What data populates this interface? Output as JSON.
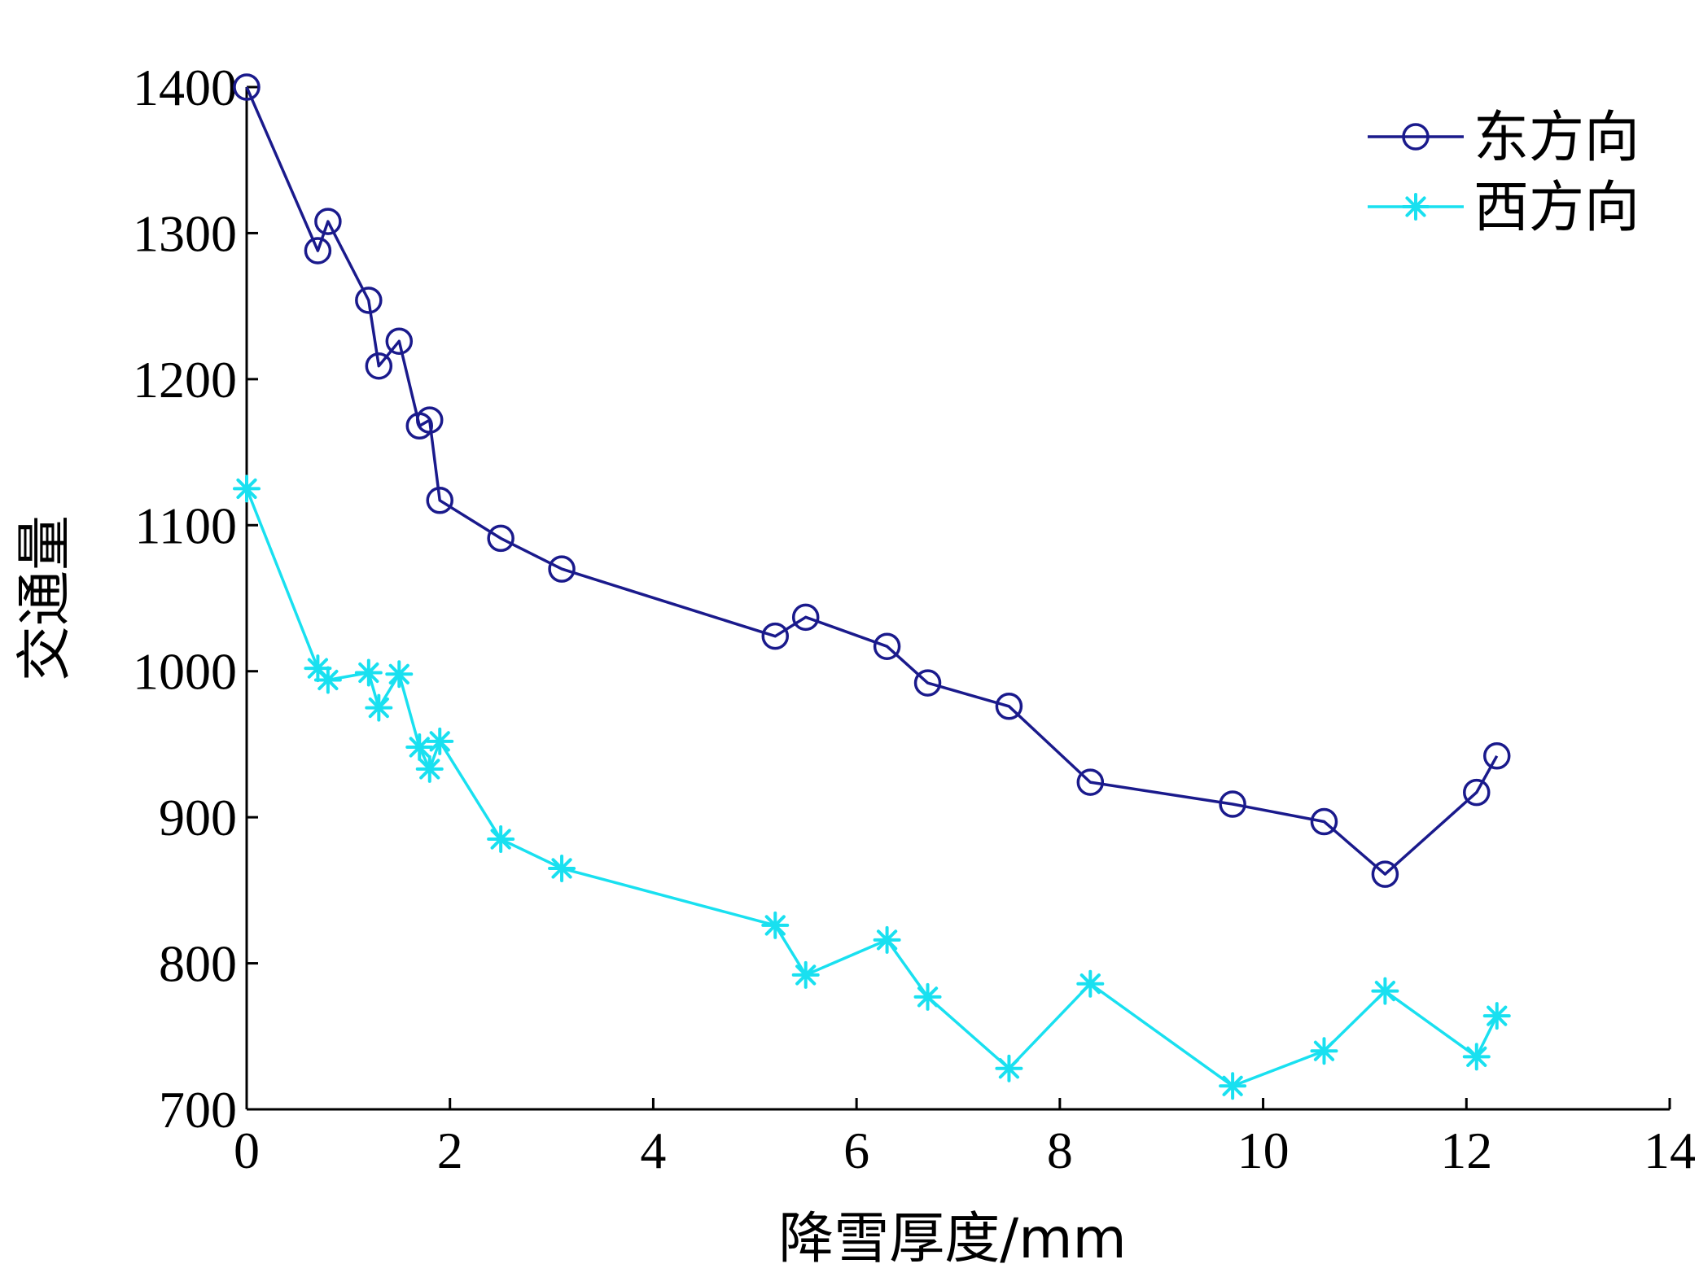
{
  "chart_data": {
    "type": "line",
    "xlabel": "降雪厚度/mm",
    "ylabel": "交通量",
    "xlim": [
      0,
      14
    ],
    "ylim": [
      700,
      1400
    ],
    "xticks": [
      0,
      2,
      4,
      6,
      8,
      10,
      12,
      14
    ],
    "yticks": [
      700,
      800,
      900,
      1000,
      1100,
      1200,
      1300,
      1400
    ],
    "grid": false,
    "legend_position": "top-right",
    "series": [
      {
        "name": "东方向",
        "color": "#1a1a8c",
        "marker": "circle",
        "x": [
          0,
          0.7,
          0.8,
          1.2,
          1.3,
          1.5,
          1.7,
          1.8,
          1.9,
          2.5,
          3.1,
          5.2,
          5.5,
          6.3,
          6.7,
          7.5,
          8.3,
          9.7,
          10.6,
          11.2,
          12.1,
          12.3
        ],
        "y": [
          1400,
          1288,
          1308,
          1254,
          1209,
          1226,
          1168,
          1172,
          1117,
          1091,
          1070,
          1024,
          1037,
          1017,
          992,
          976,
          924,
          909,
          897,
          861,
          917,
          942
        ]
      },
      {
        "name": "西方向",
        "color": "#19e0f0",
        "marker": "star",
        "x": [
          0,
          0.7,
          0.8,
          1.2,
          1.3,
          1.5,
          1.7,
          1.8,
          1.9,
          2.5,
          3.1,
          5.2,
          5.5,
          6.3,
          6.7,
          7.5,
          8.3,
          9.7,
          10.6,
          11.2,
          12.1,
          12.3
        ],
        "y": [
          1125,
          1002,
          994,
          999,
          975,
          998,
          948,
          933,
          952,
          885,
          865,
          826,
          792,
          816,
          777,
          728,
          786,
          716,
          740,
          781,
          736,
          764
        ]
      }
    ]
  }
}
